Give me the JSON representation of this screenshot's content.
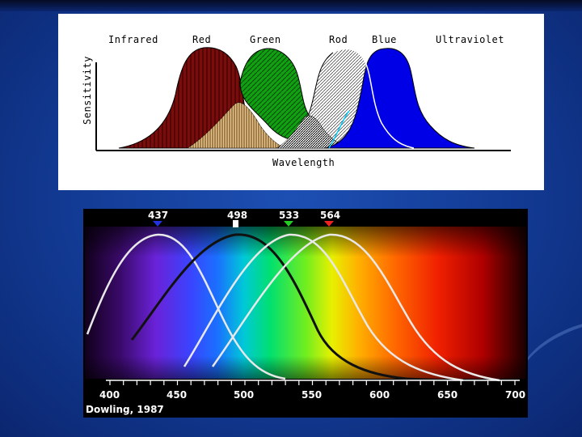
{
  "top_diagram": {
    "labels": {
      "infrared": "Infrared",
      "red": "Red",
      "green": "Green",
      "rod": "Rod",
      "blue": "Blue",
      "ultraviolet": "Ultraviolet"
    },
    "xlabel": "Wavelength",
    "ylabel": "Sensitivity",
    "colors": {
      "red": "#7a0c0c",
      "green": "#11a011",
      "blue": "#0000e6",
      "rod": "#c8c8c8"
    }
  },
  "bottom_diagram": {
    "peaks": [
      {
        "value": "437",
        "color": "#2233dd"
      },
      {
        "value": "498",
        "color": "#ffffff"
      },
      {
        "value": "533",
        "color": "#22cc22"
      },
      {
        "value": "564",
        "color": "#ee2222"
      }
    ],
    "ticks": [
      "400",
      "450",
      "500",
      "550",
      "600",
      "650",
      "700"
    ],
    "credit": "Dowling, 1987"
  }
}
